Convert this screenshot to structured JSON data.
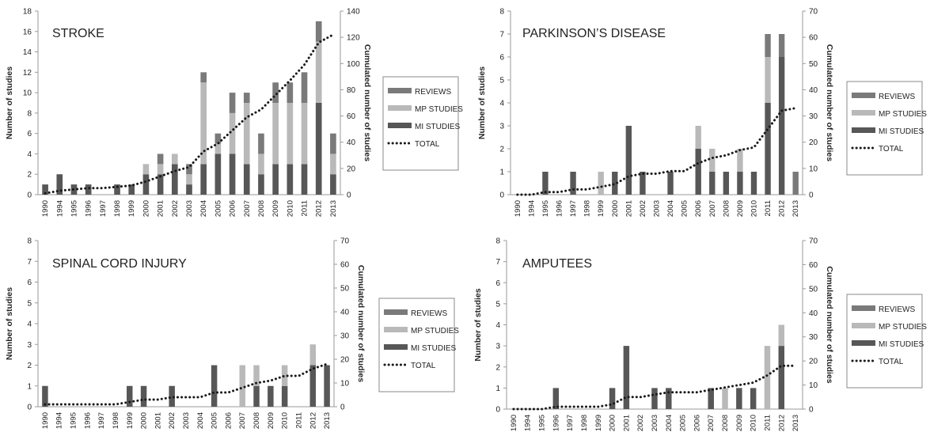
{
  "colors": {
    "reviews": "#7a7a7a",
    "mp_studies": "#b9b9b9",
    "mi_studies": "#575757",
    "total": "#1a1a1a",
    "axis": "#9a9a9a"
  },
  "legend": {
    "reviews": "REVIEWS",
    "mp": "MP STUDIES",
    "mi": "MI STUDIES",
    "total": "TOTAL"
  },
  "chart_data": [
    {
      "type": "bar",
      "title": "STROKE",
      "ylabel": "Number of studies",
      "y2label": "Cumulated number of studies",
      "ylim": [
        0,
        18
      ],
      "y_ticks": [
        0,
        2,
        4,
        6,
        8,
        10,
        12,
        14,
        16,
        18
      ],
      "y2lim": [
        0,
        140
      ],
      "y2_ticks": [
        0,
        20,
        40,
        60,
        80,
        100,
        120,
        140
      ],
      "categories": [
        "1990",
        "1994",
        "1995",
        "1996",
        "1997",
        "1998",
        "1999",
        "2000",
        "2001",
        "2002",
        "2003",
        "2004",
        "2005",
        "2006",
        "2007",
        "2008",
        "2009",
        "2010",
        "2011",
        "2012",
        "2013"
      ],
      "series": [
        {
          "name": "MI STUDIES",
          "values": [
            1,
            2,
            1,
            1,
            0,
            1,
            1,
            2,
            2,
            3,
            1,
            3,
            4,
            4,
            3,
            2,
            3,
            3,
            3,
            9,
            2
          ]
        },
        {
          "name": "MP STUDIES",
          "values": [
            0,
            0,
            0,
            0,
            0,
            0,
            0,
            1,
            1,
            1,
            1,
            8,
            1,
            4,
            6,
            2,
            6,
            6,
            6,
            6,
            2
          ]
        },
        {
          "name": "REVIEWS",
          "values": [
            0,
            0,
            0,
            0,
            0,
            0,
            0,
            0,
            1,
            0,
            1,
            1,
            1,
            2,
            1,
            2,
            2,
            2,
            3,
            2,
            2
          ]
        },
        {
          "name": "TOTAL",
          "values": [
            1,
            3,
            4,
            5,
            5,
            6,
            7,
            10,
            14,
            18,
            21,
            33,
            39,
            49,
            59,
            65,
            76,
            87,
            99,
            116,
            122
          ]
        }
      ]
    },
    {
      "type": "bar",
      "title": "PARKINSON’S DISEASE",
      "ylabel": "Number of studies",
      "y2label": "Cumulated number of studies",
      "ylim": [
        0,
        8
      ],
      "y_ticks": [
        0,
        1,
        2,
        3,
        4,
        5,
        6,
        7,
        8
      ],
      "y2lim": [
        0,
        70
      ],
      "y2_ticks": [
        0,
        10,
        20,
        30,
        40,
        50,
        60,
        70
      ],
      "categories": [
        "1990",
        "1994",
        "1995",
        "1996",
        "1997",
        "1998",
        "1999",
        "2000",
        "2001",
        "2002",
        "2003",
        "2004",
        "2005",
        "2006",
        "2007",
        "2008",
        "2009",
        "2010",
        "2011",
        "2012",
        "2013"
      ],
      "series": [
        {
          "name": "MI STUDIES",
          "values": [
            0,
            0,
            1,
            0,
            1,
            0,
            0,
            1,
            3,
            1,
            0,
            1,
            0,
            2,
            1,
            1,
            1,
            1,
            4,
            6,
            0
          ]
        },
        {
          "name": "MP STUDIES",
          "values": [
            0,
            0,
            0,
            0,
            0,
            0,
            1,
            0,
            0,
            0,
            0,
            0,
            0,
            1,
            1,
            0,
            1,
            0,
            2,
            0,
            0
          ]
        },
        {
          "name": "REVIEWS",
          "values": [
            0,
            0,
            0,
            0,
            0,
            0,
            0,
            0,
            0,
            0,
            0,
            0,
            0,
            0,
            0,
            0,
            0,
            0,
            1,
            1,
            1
          ]
        },
        {
          "name": "TOTAL",
          "values": [
            0,
            0,
            1,
            1,
            2,
            2,
            3,
            4,
            7,
            8,
            8,
            9,
            9,
            12,
            14,
            15,
            17,
            18,
            25,
            32,
            33
          ]
        }
      ]
    },
    {
      "type": "bar",
      "title": "SPINAL CORD INJURY",
      "ylabel": "Number of studies",
      "y2label": "Cumulated number of studies",
      "ylim": [
        0,
        8
      ],
      "y_ticks": [
        0,
        1,
        2,
        3,
        4,
        5,
        6,
        7,
        8
      ],
      "y2lim": [
        0,
        70
      ],
      "y2_ticks": [
        0,
        10,
        20,
        30,
        40,
        50,
        60,
        70
      ],
      "categories": [
        "1990",
        "1994",
        "1995",
        "1996",
        "1997",
        "1998",
        "1999",
        "2000",
        "2001",
        "2002",
        "2003",
        "2004",
        "2005",
        "2006",
        "2007",
        "2008",
        "2009",
        "2010",
        "2011",
        "2012",
        "2013"
      ],
      "series": [
        {
          "name": "MI STUDIES",
          "values": [
            1,
            0,
            0,
            0,
            0,
            0,
            1,
            1,
            0,
            1,
            0,
            0,
            2,
            0,
            0,
            1,
            1,
            1,
            0,
            2,
            2
          ]
        },
        {
          "name": "MP STUDIES",
          "values": [
            0,
            0,
            0,
            0,
            0,
            0,
            0,
            0,
            0,
            0,
            0,
            0,
            0,
            0,
            2,
            1,
            0,
            1,
            0,
            1,
            0
          ]
        },
        {
          "name": "REVIEWS",
          "values": [
            0,
            0,
            0,
            0,
            0,
            0,
            0,
            0,
            0,
            0,
            0,
            0,
            0,
            0,
            0,
            0,
            0,
            0,
            0,
            0,
            0
          ]
        },
        {
          "name": "TOTAL",
          "values": [
            1,
            1,
            1,
            1,
            1,
            1,
            2,
            3,
            3,
            4,
            4,
            4,
            6,
            6,
            8,
            10,
            11,
            13,
            13,
            16,
            18
          ]
        }
      ]
    },
    {
      "type": "bar",
      "title": "AMPUTEES",
      "ylabel": "Number of studies",
      "y2label": "Cumulated number of studies",
      "ylim": [
        0,
        8
      ],
      "y_ticks": [
        0,
        1,
        2,
        3,
        4,
        5,
        6,
        7,
        8
      ],
      "y2lim": [
        0,
        70
      ],
      "y2_ticks": [
        0,
        10,
        20,
        30,
        40,
        50,
        60,
        70
      ],
      "categories": [
        "1990",
        "1994",
        "1995",
        "1996",
        "1997",
        "1998",
        "1999",
        "2000",
        "2001",
        "2002",
        "2003",
        "2004",
        "2005",
        "2006",
        "2007",
        "2008",
        "2009",
        "2010",
        "2011",
        "2012",
        "2013"
      ],
      "series": [
        {
          "name": "MI STUDIES",
          "values": [
            0,
            0,
            0,
            1,
            0,
            0,
            0,
            1,
            3,
            0,
            1,
            1,
            0,
            0,
            1,
            0,
            1,
            1,
            0,
            3,
            0
          ]
        },
        {
          "name": "MP STUDIES",
          "values": [
            0,
            0,
            0,
            0,
            0,
            0,
            0,
            0,
            0,
            0,
            0,
            0,
            0,
            0,
            0,
            1,
            0,
            0,
            3,
            1,
            0
          ]
        },
        {
          "name": "REVIEWS",
          "values": [
            0,
            0,
            0,
            0,
            0,
            0,
            0,
            0,
            0,
            0,
            0,
            0,
            0,
            0,
            0,
            0,
            0,
            0,
            0,
            0,
            0
          ]
        },
        {
          "name": "TOTAL",
          "values": [
            0,
            0,
            0,
            1,
            1,
            1,
            1,
            2,
            5,
            5,
            6,
            7,
            7,
            7,
            8,
            9,
            10,
            11,
            14,
            18,
            18
          ]
        }
      ]
    }
  ]
}
